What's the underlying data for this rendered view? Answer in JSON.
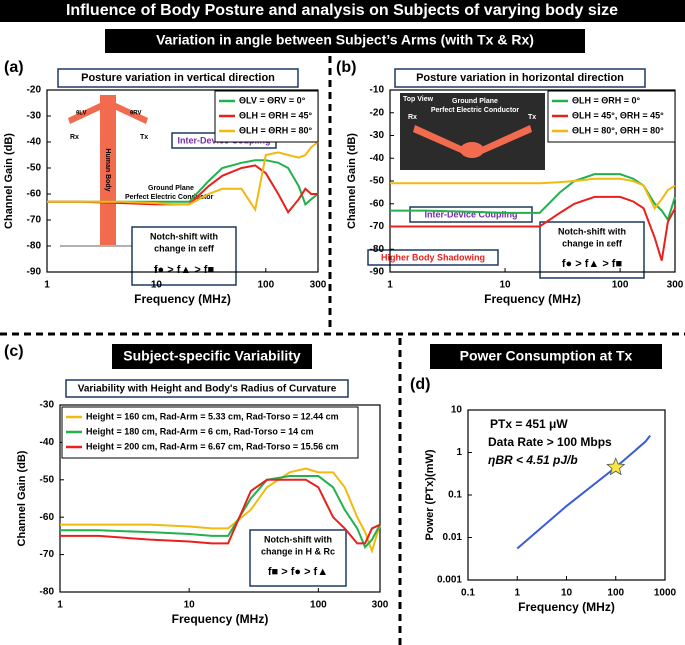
{
  "header": {
    "title": "Influence of Body Posture and analysis on Subjects of varying body size",
    "section": "Variation in angle between Subject’s Arms (with Tx & Rx)"
  },
  "chart_data": [
    {
      "type": "line",
      "label": "(a)",
      "title": "Posture variation in vertical direction",
      "xlabel": "Frequency (MHz)",
      "ylabel": "Channel Gain (dB)",
      "xscale": "log",
      "xlim": [
        1,
        300
      ],
      "xticks": [
        1,
        10,
        100,
        300
      ],
      "ylim": [
        -90,
        -20
      ],
      "yticks": [
        -90,
        -80,
        -70,
        -60,
        -50,
        -40,
        -30,
        -20
      ],
      "x": [
        1,
        2,
        5,
        10,
        15,
        20,
        30,
        40,
        60,
        80,
        100,
        130,
        160,
        200,
        230,
        260,
        300
      ],
      "series": [
        {
          "name": "ΘLV = ΘRV = 0°",
          "color": "#22b14c",
          "values": [
            -63,
            -63,
            -63,
            -63,
            -63,
            -63,
            -55,
            -50,
            -48,
            -47,
            -47,
            -48,
            -50,
            -57,
            -64,
            -62,
            -60
          ]
        },
        {
          "name": "ΘLH = ΘRH = 45°",
          "color": "#e8211d",
          "values": [
            -63,
            -63,
            -63.5,
            -64,
            -64,
            -64,
            -57,
            -53,
            -50,
            -49,
            -52,
            -60,
            -67,
            -62,
            -58,
            -60,
            -60
          ]
        },
        {
          "name": "ΘLH = ΘRH = 80°",
          "color": "#f2b90f",
          "values": [
            -63,
            -63,
            -63,
            -63.5,
            -64,
            -64,
            -60,
            -58,
            -58,
            -66,
            -45,
            -44,
            -45,
            -46,
            -45,
            -42,
            -40
          ]
        }
      ],
      "annotations": [
        "Inter-Device Coupling",
        "Notch-shift with",
        "change in εeff",
        "f● > f▲ > f■"
      ],
      "inset": [
        "Rx",
        "Tx",
        "Human Body",
        "Ground Plane",
        "Perfect Electric Conductor",
        "θLV",
        "θRV"
      ]
    },
    {
      "type": "line",
      "label": "(b)",
      "title": "Posture variation in horizontal direction",
      "xlabel": "Frequency (MHz)",
      "ylabel": "Channel Gain (dB)",
      "xscale": "log",
      "xlim": [
        1,
        300
      ],
      "xticks": [
        1,
        10,
        100,
        300
      ],
      "ylim": [
        -90,
        -10
      ],
      "yticks": [
        -90,
        -80,
        -70,
        -60,
        -50,
        -40,
        -30,
        -20,
        -10
      ],
      "x": [
        1,
        2,
        5,
        10,
        15,
        20,
        30,
        40,
        60,
        80,
        100,
        130,
        160,
        200,
        230,
        260,
        300
      ],
      "series": [
        {
          "name": "ΘLH = ΘRH = 0°",
          "color": "#22b14c",
          "values": [
            -63,
            -63,
            -63.5,
            -64,
            -64,
            -64,
            -55,
            -50,
            -47,
            -47,
            -47,
            -49,
            -52,
            -60,
            -63,
            -67,
            -57
          ]
        },
        {
          "name": "ΘLH = 45°, ΘRH = 45°",
          "color": "#e8211d",
          "values": [
            -70,
            -70,
            -70,
            -70,
            -70,
            -70,
            -64,
            -60,
            -57,
            -57,
            -57,
            -59,
            -62,
            -75,
            -85,
            -68,
            -62
          ]
        },
        {
          "name": "ΘLH = 80°, ΘRH = 80°",
          "color": "#f2b90f",
          "values": [
            -51,
            -51,
            -51,
            -51,
            -51,
            -51,
            -50.5,
            -50,
            -49,
            -49,
            -49,
            -50,
            -52,
            -62,
            -58,
            -54,
            -52
          ]
        }
      ],
      "annotations": [
        "Inter-Device Coupling",
        "Higher Body Shadowing",
        "Notch-shift with",
        "change in εeff",
        "f● > f▲ > f■"
      ],
      "inset": [
        "Top View",
        "Ground Plane",
        "Perfect Electric Conductor",
        "Rx",
        "Tx"
      ]
    },
    {
      "type": "line",
      "label": "(c)",
      "section_title": "Subject-specific Variability",
      "title": "Variability with Height and Body's Radius of Curvature",
      "xlabel": "Frequency (MHz)",
      "ylabel": "Channel Gain (dB)",
      "xscale": "log",
      "xlim": [
        1,
        300
      ],
      "xticks": [
        1,
        10,
        100,
        300
      ],
      "ylim": [
        -80,
        -30
      ],
      "yticks": [
        -80,
        -70,
        -60,
        -50,
        -40,
        -30
      ],
      "x": [
        1,
        2,
        5,
        10,
        15,
        20,
        30,
        40,
        60,
        80,
        100,
        130,
        160,
        200,
        230,
        260,
        300
      ],
      "series": [
        {
          "name": "Height = 160 cm, Rad-Arm = 5.33 cm, Rad-Torso = 12.44 cm",
          "color": "#f2b90f",
          "values": [
            -62,
            -62,
            -62,
            -62.5,
            -63,
            -63,
            -58,
            -52,
            -48,
            -47,
            -48,
            -48,
            -52,
            -60,
            -64,
            -69,
            -62
          ]
        },
        {
          "name": "Height = 180 cm, Rad-Arm = 6 cm, Rad-Torso = 14 cm",
          "color": "#22b14c",
          "values": [
            -63.5,
            -63.5,
            -64,
            -64.5,
            -65,
            -65,
            -55,
            -50,
            -49,
            -49,
            -49,
            -52,
            -58,
            -63,
            -68,
            -66,
            -62
          ]
        },
        {
          "name": "Height = 200 cm, Rad-Arm = 6.67 cm, Rad-Torso = 15.56 cm",
          "color": "#e8211d",
          "values": [
            -65,
            -65,
            -66,
            -66.5,
            -67,
            -67,
            -53,
            -50,
            -50,
            -50,
            -52,
            -60,
            -63,
            -67,
            -67,
            -63,
            -62
          ]
        }
      ],
      "annotations": [
        "Notch-shift with",
        "change in H & Rc",
        "f■ > f● > f▲"
      ]
    },
    {
      "type": "line",
      "label": "(d)",
      "title": "Power Consumption at Tx",
      "xlabel": "Frequency (MHz)",
      "ylabel": "Power (PTx)(mW)",
      "xscale": "log",
      "yscale": "log",
      "xlim": [
        0.1,
        1000
      ],
      "xticks": [
        0.1,
        1,
        10,
        100,
        1000
      ],
      "ylim": [
        0.001,
        10
      ],
      "yticks": [
        0.001,
        0.01,
        0.1,
        1,
        10
      ],
      "x": [
        1,
        10,
        100,
        200,
        400,
        500
      ],
      "series": [
        {
          "color": "#3a5bd9",
          "values": [
            0.0055,
            0.055,
            0.45,
            0.9,
            1.8,
            2.5
          ]
        }
      ],
      "marker": {
        "x": 100,
        "y": 0.45,
        "color": "#f5e642"
      },
      "annotations": [
        "PTx = 451 μW",
        "Data Rate > 100 Mbps",
        "ηBR < 4.51 pJ/b"
      ]
    }
  ]
}
